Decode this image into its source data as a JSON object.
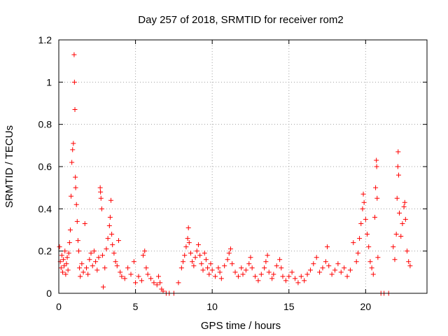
{
  "chart_data": {
    "type": "scatter",
    "title": "Day 257 of 2018, SRMTID for receiver rom2",
    "xlabel": "GPS time / hours",
    "ylabel": "SRMTID / TECUs",
    "xlim": [
      0,
      24
    ],
    "ylim": [
      0,
      1.2
    ],
    "x_ticks": [
      0,
      5,
      10,
      15,
      20
    ],
    "x_tick_labels": [
      "0",
      "5",
      "10",
      "15",
      "20"
    ],
    "y_ticks": [
      0,
      0.2,
      0.4,
      0.6,
      0.8,
      1.0,
      1.2
    ],
    "y_tick_labels": [
      "0",
      "0.2",
      "0.4",
      "0.6",
      "0.8",
      "1",
      "1.2"
    ],
    "grid": true,
    "marker": "+",
    "color": "#ff0000",
    "series": [
      {
        "name": "SRMTID",
        "points": [
          [
            0.05,
            0.22
          ],
          [
            0.1,
            0.15
          ],
          [
            0.15,
            0.12
          ],
          [
            0.2,
            0.18
          ],
          [
            0.25,
            0.1
          ],
          [
            0.3,
            0.16
          ],
          [
            0.35,
            0.13
          ],
          [
            0.4,
            0.2
          ],
          [
            0.45,
            0.09
          ],
          [
            0.5,
            0.14
          ],
          [
            0.55,
            0.17
          ],
          [
            0.6,
            0.11
          ],
          [
            0.65,
            0.19
          ],
          [
            0.7,
            0.24
          ],
          [
            0.75,
            0.3
          ],
          [
            0.8,
            0.46
          ],
          [
            0.85,
            0.62
          ],
          [
            0.9,
            0.68
          ],
          [
            0.95,
            0.71
          ],
          [
            1.0,
            1.13
          ],
          [
            1.02,
            1.0
          ],
          [
            1.05,
            0.87
          ],
          [
            1.08,
            0.55
          ],
          [
            1.1,
            0.5
          ],
          [
            1.15,
            0.42
          ],
          [
            1.2,
            0.34
          ],
          [
            1.25,
            0.25
          ],
          [
            1.3,
            0.2
          ],
          [
            1.35,
            0.12
          ],
          [
            1.4,
            0.08
          ],
          [
            1.5,
            0.14
          ],
          [
            1.6,
            0.1
          ],
          [
            1.7,
            0.33
          ],
          [
            1.8,
            0.12
          ],
          [
            1.9,
            0.09
          ],
          [
            2.0,
            0.16
          ],
          [
            2.1,
            0.19
          ],
          [
            2.2,
            0.13
          ],
          [
            2.3,
            0.2
          ],
          [
            2.4,
            0.15
          ],
          [
            2.5,
            0.11
          ],
          [
            2.6,
            0.17
          ],
          [
            2.7,
            0.5
          ],
          [
            2.72,
            0.48
          ],
          [
            2.75,
            0.45
          ],
          [
            2.8,
            0.4
          ],
          [
            2.85,
            0.18
          ],
          [
            2.9,
            0.03
          ],
          [
            3.0,
            0.12
          ],
          [
            3.1,
            0.21
          ],
          [
            3.2,
            0.26
          ],
          [
            3.3,
            0.32
          ],
          [
            3.35,
            0.36
          ],
          [
            3.4,
            0.44
          ],
          [
            3.45,
            0.28
          ],
          [
            3.5,
            0.23
          ],
          [
            3.6,
            0.19
          ],
          [
            3.7,
            0.15
          ],
          [
            3.8,
            0.13
          ],
          [
            3.9,
            0.25
          ],
          [
            4.0,
            0.1
          ],
          [
            4.1,
            0.08
          ],
          [
            4.3,
            0.07
          ],
          [
            4.5,
            0.12
          ],
          [
            4.7,
            0.09
          ],
          [
            4.9,
            0.15
          ],
          [
            5.0,
            0.05
          ],
          [
            5.2,
            0.08
          ],
          [
            5.4,
            0.06
          ],
          [
            5.5,
            0.18
          ],
          [
            5.6,
            0.2
          ],
          [
            5.7,
            0.12
          ],
          [
            5.8,
            0.09
          ],
          [
            6.0,
            0.07
          ],
          [
            6.2,
            0.05
          ],
          [
            6.4,
            0.04
          ],
          [
            6.5,
            0.08
          ],
          [
            6.6,
            0.05
          ],
          [
            6.7,
            0.02
          ],
          [
            6.8,
            0.01
          ],
          [
            7.0,
            0.0
          ],
          [
            7.2,
            0.0
          ],
          [
            7.5,
            0.0
          ],
          [
            7.8,
            0.05
          ],
          [
            8.0,
            0.12
          ],
          [
            8.1,
            0.15
          ],
          [
            8.2,
            0.18
          ],
          [
            8.3,
            0.22
          ],
          [
            8.4,
            0.26
          ],
          [
            8.45,
            0.31
          ],
          [
            8.5,
            0.24
          ],
          [
            8.6,
            0.19
          ],
          [
            8.7,
            0.15
          ],
          [
            8.8,
            0.13
          ],
          [
            8.9,
            0.17
          ],
          [
            9.0,
            0.2
          ],
          [
            9.1,
            0.23
          ],
          [
            9.2,
            0.18
          ],
          [
            9.3,
            0.14
          ],
          [
            9.4,
            0.11
          ],
          [
            9.5,
            0.19
          ],
          [
            9.6,
            0.16
          ],
          [
            9.7,
            0.12
          ],
          [
            9.8,
            0.09
          ],
          [
            9.9,
            0.14
          ],
          [
            10.0,
            0.11
          ],
          [
            10.2,
            0.08
          ],
          [
            10.4,
            0.12
          ],
          [
            10.5,
            0.1
          ],
          [
            10.6,
            0.07
          ],
          [
            10.8,
            0.13
          ],
          [
            11.0,
            0.16
          ],
          [
            11.1,
            0.19
          ],
          [
            11.2,
            0.21
          ],
          [
            11.3,
            0.14
          ],
          [
            11.5,
            0.1
          ],
          [
            11.7,
            0.08
          ],
          [
            11.9,
            0.12
          ],
          [
            12.0,
            0.09
          ],
          [
            12.2,
            0.11
          ],
          [
            12.4,
            0.14
          ],
          [
            12.5,
            0.17
          ],
          [
            12.6,
            0.12
          ],
          [
            12.8,
            0.08
          ],
          [
            13.0,
            0.06
          ],
          [
            13.2,
            0.09
          ],
          [
            13.4,
            0.12
          ],
          [
            13.5,
            0.15
          ],
          [
            13.6,
            0.18
          ],
          [
            13.7,
            0.1
          ],
          [
            13.9,
            0.07
          ],
          [
            14.0,
            0.09
          ],
          [
            14.2,
            0.13
          ],
          [
            14.4,
            0.16
          ],
          [
            14.5,
            0.12
          ],
          [
            14.6,
            0.08
          ],
          [
            14.8,
            0.06
          ],
          [
            15.0,
            0.08
          ],
          [
            15.2,
            0.1
          ],
          [
            15.4,
            0.07
          ],
          [
            15.6,
            0.05
          ],
          [
            15.8,
            0.08
          ],
          [
            16.0,
            0.06
          ],
          [
            16.2,
            0.09
          ],
          [
            16.4,
            0.11
          ],
          [
            16.6,
            0.14
          ],
          [
            16.8,
            0.17
          ],
          [
            17.0,
            0.1
          ],
          [
            17.2,
            0.12
          ],
          [
            17.4,
            0.15
          ],
          [
            17.5,
            0.22
          ],
          [
            17.6,
            0.13
          ],
          [
            17.8,
            0.09
          ],
          [
            18.0,
            0.11
          ],
          [
            18.2,
            0.14
          ],
          [
            18.4,
            0.1
          ],
          [
            18.6,
            0.12
          ],
          [
            18.8,
            0.08
          ],
          [
            19.0,
            0.11
          ],
          [
            19.2,
            0.24
          ],
          [
            19.4,
            0.15
          ],
          [
            19.5,
            0.19
          ],
          [
            19.6,
            0.26
          ],
          [
            19.7,
            0.33
          ],
          [
            19.8,
            0.4
          ],
          [
            19.85,
            0.47
          ],
          [
            19.9,
            0.43
          ],
          [
            20.0,
            0.35
          ],
          [
            20.1,
            0.28
          ],
          [
            20.2,
            0.22
          ],
          [
            20.3,
            0.15
          ],
          [
            20.4,
            0.12
          ],
          [
            20.5,
            0.09
          ],
          [
            20.6,
            0.36
          ],
          [
            20.65,
            0.5
          ],
          [
            20.7,
            0.63
          ],
          [
            20.72,
            0.6
          ],
          [
            20.75,
            0.45
          ],
          [
            20.8,
            0.17
          ],
          [
            21.0,
            0.0
          ],
          [
            21.2,
            0.0
          ],
          [
            21.5,
            0.0
          ],
          [
            21.8,
            0.22
          ],
          [
            21.9,
            0.16
          ],
          [
            22.0,
            0.28
          ],
          [
            22.05,
            0.45
          ],
          [
            22.1,
            0.6
          ],
          [
            22.12,
            0.67
          ],
          [
            22.15,
            0.56
          ],
          [
            22.2,
            0.38
          ],
          [
            22.3,
            0.27
          ],
          [
            22.4,
            0.33
          ],
          [
            22.5,
            0.41
          ],
          [
            22.55,
            0.43
          ],
          [
            22.6,
            0.35
          ],
          [
            22.7,
            0.2
          ],
          [
            22.8,
            0.15
          ],
          [
            22.9,
            0.13
          ]
        ]
      }
    ]
  }
}
